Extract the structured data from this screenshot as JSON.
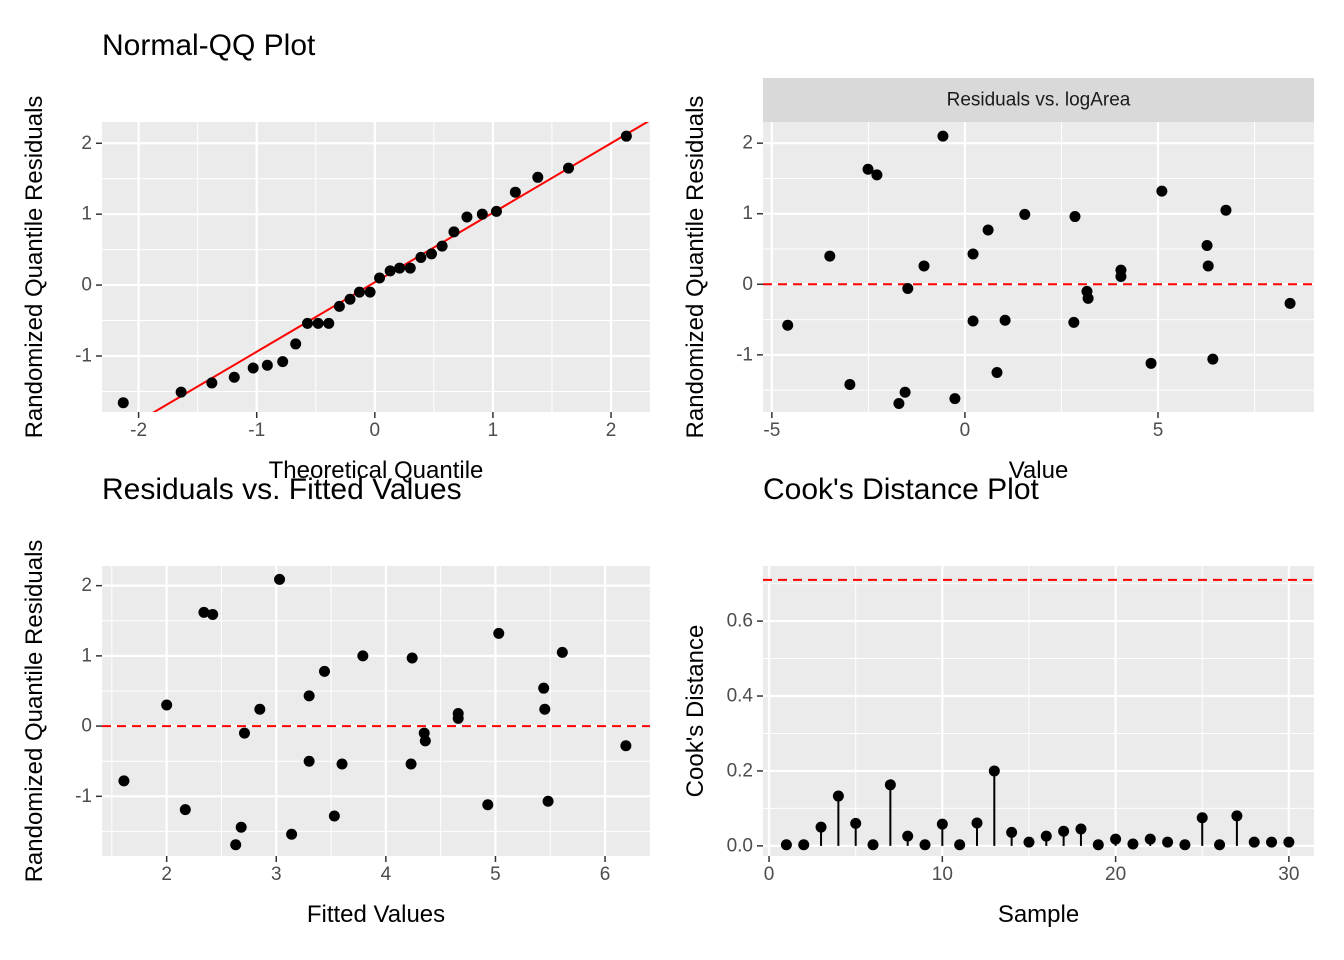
{
  "chart_data": [
    {
      "type": "scatter",
      "title": "Normal-QQ Plot",
      "x_label": "Theoretical Quantile",
      "y_label": "Randomized Quantile Residuals",
      "x": [
        -2.13,
        -1.64,
        -1.38,
        -1.19,
        -1.03,
        -0.91,
        -0.78,
        -0.67,
        -0.57,
        -0.48,
        -0.39,
        -0.3,
        -0.21,
        -0.13,
        -0.04,
        0.04,
        0.13,
        0.21,
        0.3,
        0.39,
        0.48,
        0.57,
        0.67,
        0.78,
        0.91,
        1.03,
        1.19,
        1.38,
        1.64,
        2.13
      ],
      "values": [
        -1.66,
        -1.51,
        -1.38,
        -1.3,
        -1.17,
        -1.13,
        -1.08,
        -0.83,
        -0.54,
        -0.54,
        -0.54,
        -0.3,
        -0.2,
        -0.1,
        -0.1,
        0.1,
        0.2,
        0.24,
        0.24,
        0.39,
        0.44,
        0.55,
        0.75,
        0.96,
        1.0,
        1.04,
        1.31,
        1.52,
        1.65,
        2.1
      ],
      "color": "#000000",
      "abline": {
        "slope": 0.98,
        "intercept": 0.04,
        "color": "#ff0000"
      },
      "xlim": [
        -2.31,
        2.33
      ],
      "xticks": [
        -2,
        -1,
        0,
        1,
        2
      ],
      "ylim": [
        -1.79,
        2.3
      ],
      "yticks": [
        -1,
        0,
        1,
        2
      ],
      "grid": true
    },
    {
      "type": "scatter",
      "strip": "Residuals vs. logArea",
      "x_label": "Value",
      "y_label": "Randomized Quantile Residuals",
      "x": [
        -4.59,
        -3.5,
        -2.98,
        -2.51,
        -2.28,
        -1.71,
        -1.55,
        -1.48,
        -1.06,
        -0.57,
        -0.26,
        0.21,
        0.21,
        0.6,
        0.83,
        1.04,
        1.55,
        2.85,
        2.82,
        3.16,
        3.19,
        4.04,
        4.04,
        4.82,
        5.1,
        6.27,
        6.3,
        6.42,
        6.76,
        8.42
      ],
      "values": [
        -0.58,
        0.4,
        -1.42,
        1.63,
        1.55,
        -1.69,
        -1.53,
        -0.06,
        0.26,
        2.1,
        -1.62,
        0.43,
        -0.52,
        0.77,
        -1.25,
        -0.51,
        0.99,
        0.96,
        -0.54,
        -0.1,
        -0.2,
        0.2,
        0.11,
        -1.12,
        1.32,
        0.55,
        0.26,
        -1.06,
        1.05,
        -0.27
      ],
      "color": "#000000",
      "hlines": [
        {
          "value": 0,
          "color": "#ff0000",
          "dashed": true
        }
      ],
      "xlim": [
        -5.23,
        9.04
      ],
      "xticks": [
        -5,
        0,
        5
      ],
      "ylim": [
        -1.81,
        2.3
      ],
      "yticks": [
        -1,
        0,
        1,
        2
      ],
      "grid": true
    },
    {
      "type": "scatter",
      "title": "Residuals vs. Fitted Values",
      "x_label": "Fitted Values",
      "y_label": "Randomized Quantile Residuals",
      "x": [
        1.61,
        2.0,
        2.17,
        2.34,
        2.42,
        2.63,
        2.68,
        2.71,
        2.85,
        3.03,
        3.14,
        3.3,
        3.3,
        3.44,
        3.53,
        3.6,
        3.79,
        4.23,
        4.24,
        4.35,
        4.36,
        4.66,
        4.66,
        4.93,
        5.03,
        5.44,
        5.45,
        5.48,
        5.61,
        6.19
      ],
      "values": [
        -0.78,
        0.3,
        -1.19,
        1.62,
        1.59,
        -1.69,
        -1.44,
        -0.1,
        0.24,
        2.09,
        -1.54,
        0.43,
        -0.5,
        0.78,
        -1.28,
        -0.54,
        1.0,
        -0.54,
        0.97,
        -0.1,
        -0.21,
        0.18,
        0.11,
        -1.12,
        1.32,
        0.54,
        0.24,
        -1.07,
        1.05,
        -0.28
      ],
      "color": "#000000",
      "hlines": [
        {
          "value": 0,
          "color": "#ff0000",
          "dashed": true
        }
      ],
      "xlim": [
        1.41,
        6.41
      ],
      "xticks": [
        2,
        3,
        4,
        5,
        6
      ],
      "ylim": [
        -1.85,
        2.28
      ],
      "yticks": [
        -1,
        0,
        1,
        2
      ],
      "grid": true
    },
    {
      "type": "stem",
      "title": "Cook's Distance Plot",
      "x_label": "Sample",
      "y_label": "Cook's Distance",
      "x": [
        1,
        2,
        3,
        4,
        5,
        6,
        7,
        8,
        9,
        10,
        11,
        12,
        13,
        14,
        15,
        16,
        17,
        18,
        19,
        20,
        21,
        22,
        23,
        24,
        25,
        26,
        27,
        28,
        29,
        30
      ],
      "values": [
        0.003,
        0.003,
        0.05,
        0.133,
        0.06,
        0.003,
        0.163,
        0.026,
        0.003,
        0.058,
        0.003,
        0.061,
        0.2,
        0.036,
        0.01,
        0.026,
        0.039,
        0.045,
        0.003,
        0.018,
        0.005,
        0.018,
        0.01,
        0.003,
        0.075,
        0.003,
        0.08,
        0.01,
        0.01,
        0.01
      ],
      "color": "#000000",
      "hlines": [
        {
          "value": 0.71,
          "color": "#ff0000",
          "dashed": true
        }
      ],
      "xlim": [
        -0.35,
        31.45
      ],
      "xticks": [
        0,
        10,
        20,
        30
      ],
      "ylim": [
        -0.027,
        0.747
      ],
      "yticks": [
        {
          "value": 0,
          "label": "0.0"
        },
        {
          "value": 0.2,
          "label": "0.2"
        },
        {
          "value": 0.4,
          "label": "0.4"
        },
        {
          "value": 0.6,
          "label": "0.6"
        }
      ],
      "grid": true
    }
  ]
}
